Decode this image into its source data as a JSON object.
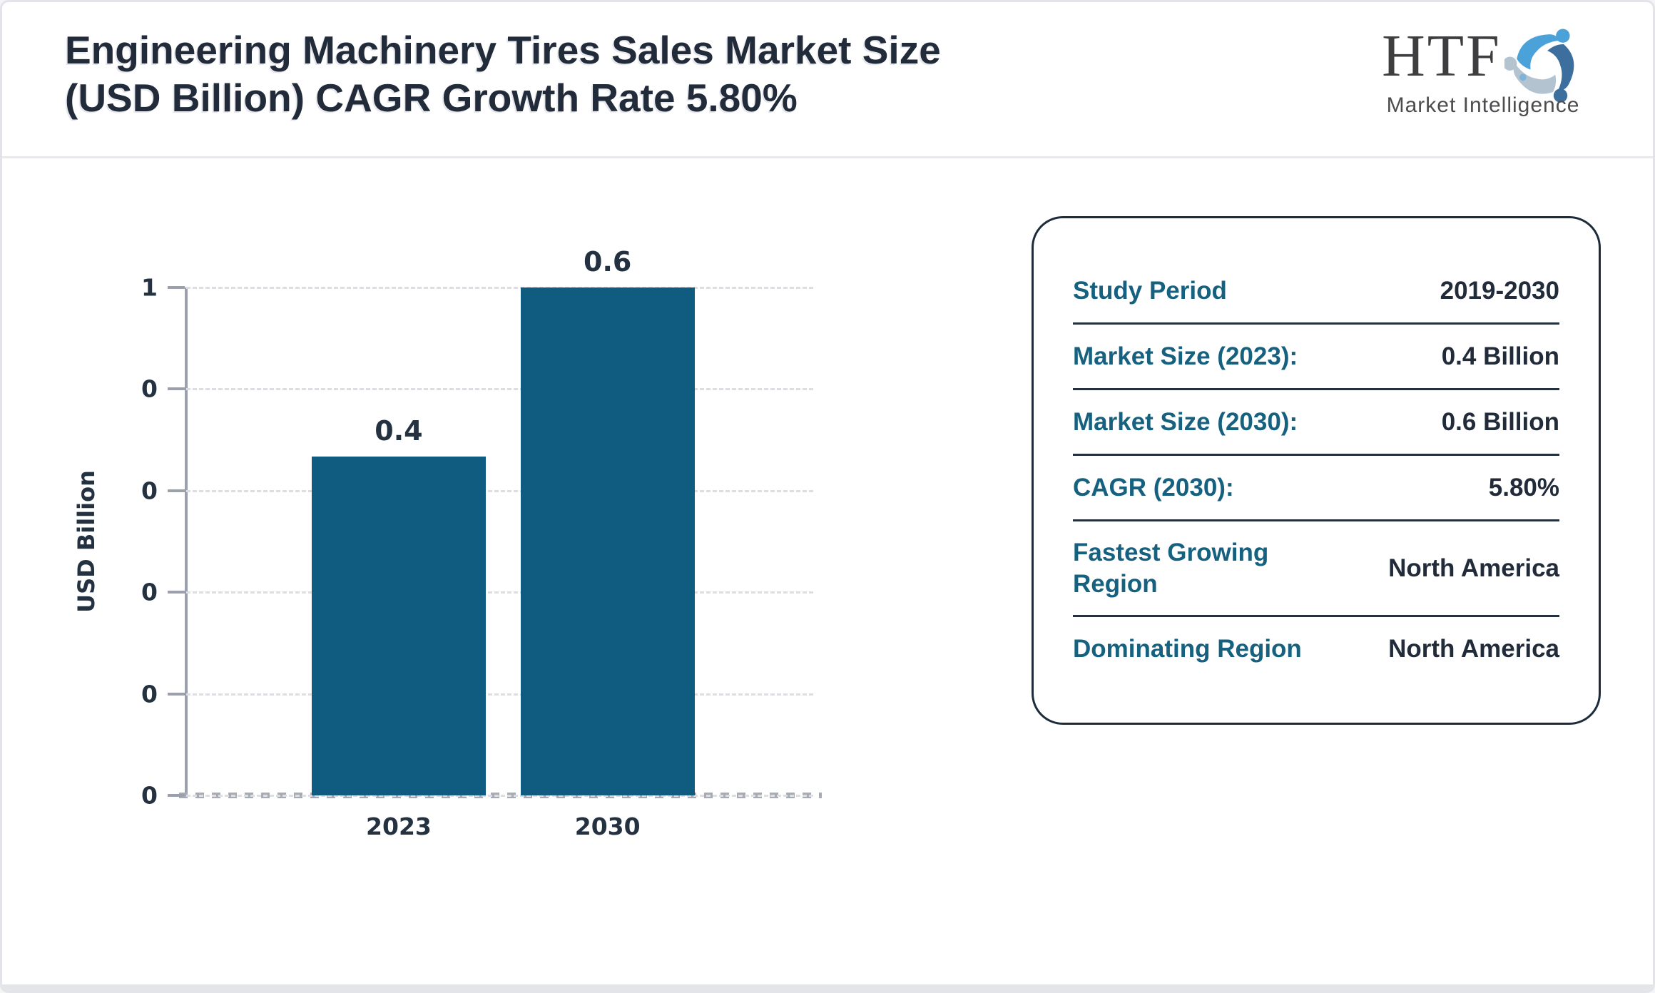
{
  "header": {
    "title_lines": [
      "Engineering Machinery Tires Sales Market Size",
      "(USD Billion) CAGR Growth Rate 5.80%"
    ],
    "logo": {
      "text": "HTF",
      "subtext": "Market Intelligence"
    }
  },
  "chart_data": {
    "type": "bar",
    "categories": [
      "2023",
      "2030"
    ],
    "values": [
      0.4,
      0.6
    ],
    "bar_labels": [
      "0.4",
      "0.6"
    ],
    "ylabel": "USD Billion",
    "ytick_labels": [
      "1",
      "0",
      "0",
      "0",
      "0",
      "0"
    ],
    "ylim_display": [
      0,
      0.6
    ],
    "grid": "horizontal-dashed",
    "legend": "none",
    "bar_color": "#0F5C80"
  },
  "card": {
    "rows": [
      {
        "label": "Study Period",
        "value": "2019-2030"
      },
      {
        "label": "Market Size (2023):",
        "value": "0.4 Billion"
      },
      {
        "label": "Market Size (2030):",
        "value": "0.6 Billion"
      },
      {
        "label": "CAGR (2030):",
        "value": "5.80%"
      },
      {
        "label": "Fastest Growing Region",
        "value": "North America"
      },
      {
        "label": "Dominating Region",
        "value": "North America"
      }
    ]
  },
  "colors": {
    "bar": "#0F5C80",
    "label_teal": "#16617F",
    "text_dark": "#222B3A",
    "axis_gray": "#9BA1AC",
    "gridline": "#DEDEE2",
    "card_border": "#1D2B3A",
    "logo_blue_light": "#4AA2D8",
    "logo_blue_dark": "#3C6F9E",
    "logo_gray_blue": "#B3C3D0"
  }
}
